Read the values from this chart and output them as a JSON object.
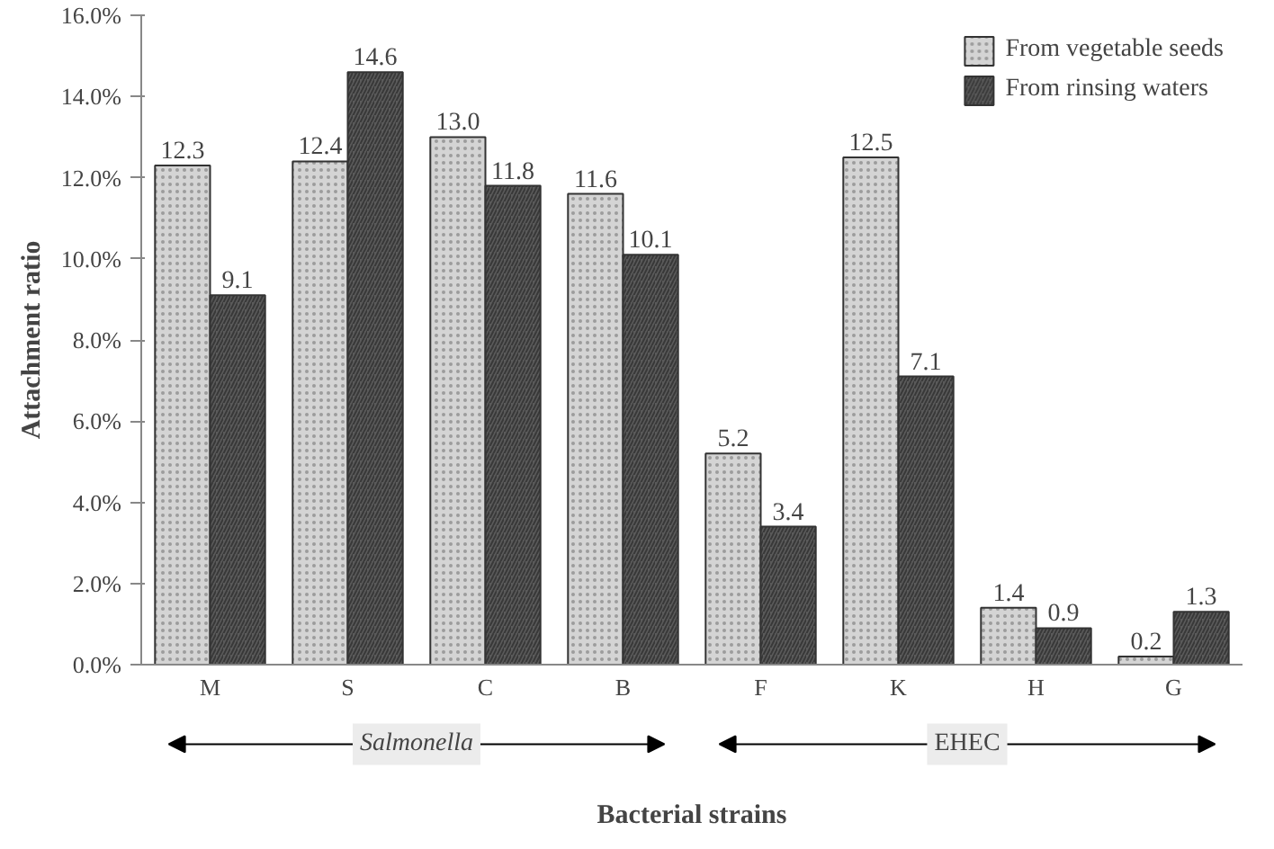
{
  "chart_data": {
    "type": "bar",
    "xlabel": "Bacterial strains",
    "ylabel": "Attachment ratio",
    "categories": [
      "M",
      "S",
      "C",
      "B",
      "F",
      "K",
      "H",
      "G"
    ],
    "series": [
      {
        "name": "From vegetable seeds",
        "color": "#d4d4d4",
        "values": [
          12.3,
          12.4,
          13.0,
          11.6,
          5.2,
          12.5,
          1.4,
          0.2
        ],
        "value_labels": [
          "12.3",
          "12.4",
          "13.0",
          "11.6",
          "5.2",
          "12.5",
          "1.4",
          "0.2"
        ]
      },
      {
        "name": "From rinsing waters",
        "color": "#5a5a5a",
        "values": [
          9.1,
          14.6,
          11.8,
          10.1,
          3.4,
          7.1,
          0.9,
          1.3
        ],
        "value_labels": [
          "9.1",
          "14.6",
          "11.8",
          "10.1",
          "3.4",
          "7.1",
          "0.9",
          "1.3"
        ]
      }
    ],
    "ylim": [
      0,
      16
    ],
    "yticks": [
      {
        "value": 0,
        "label": "0.0%"
      },
      {
        "value": 2,
        "label": "2.0%"
      },
      {
        "value": 4,
        "label": "4.0%"
      },
      {
        "value": 6,
        "label": "6.0%"
      },
      {
        "value": 8,
        "label": "8.0%"
      },
      {
        "value": 10,
        "label": "10.0%"
      },
      {
        "value": 12,
        "label": "12.0%"
      },
      {
        "value": 14,
        "label": "14.0%"
      },
      {
        "value": 16,
        "label": "16.0%"
      }
    ],
    "annotations": [
      "Salmonella",
      "EHEC"
    ],
    "legend": "top right",
    "grid": false
  }
}
